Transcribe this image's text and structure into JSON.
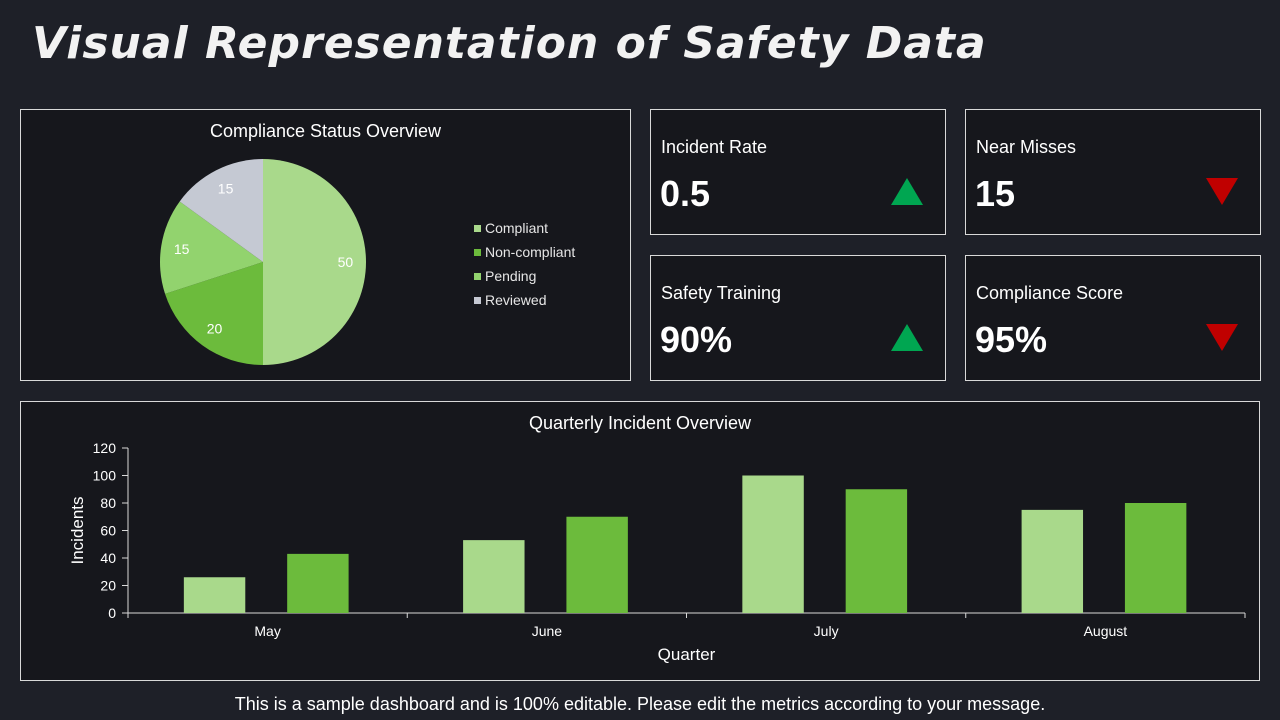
{
  "title": "Visual Representation of Safety Data",
  "footer": "This is a sample dashboard and is 100% editable. Please edit the metrics according to your message.",
  "kpis": [
    {
      "label": "Incident Rate",
      "value": "0.5",
      "trend": "up"
    },
    {
      "label": "Near Misses",
      "value": "15",
      "trend": "down"
    },
    {
      "label": "Safety Training",
      "value": "90%",
      "trend": "up"
    },
    {
      "label": "Compliance Score",
      "value": "95%",
      "trend": "down"
    }
  ],
  "colors": {
    "compliant": "#a9d98b",
    "non_compliant": "#6cbb3c",
    "pending": "#92d36e",
    "reviewed": "#c5c9d3",
    "bar_series_1": "#a9d98b",
    "bar_series_2": "#6cbb3c",
    "trend_up": "#00a651",
    "trend_down": "#c00000"
  },
  "chart_data": [
    {
      "type": "pie",
      "title": "Compliance Status Overview",
      "categories": [
        "Compliant",
        "Non-compliant",
        "Pending",
        "Reviewed"
      ],
      "values": [
        50,
        20,
        15,
        15
      ],
      "legend": "right"
    },
    {
      "type": "bar",
      "title": "Quarterly Incident Overview",
      "categories": [
        "May",
        "June",
        "July",
        "August"
      ],
      "series": [
        {
          "values": [
            26,
            53,
            100,
            75
          ]
        },
        {
          "values": [
            43,
            70,
            90,
            80
          ]
        }
      ],
      "xlabel": "Quarter",
      "ylabel": "Incidents",
      "ylim": [
        0,
        120
      ],
      "yticks": [
        0,
        20,
        40,
        60,
        80,
        100,
        120
      ],
      "grid": false
    }
  ]
}
